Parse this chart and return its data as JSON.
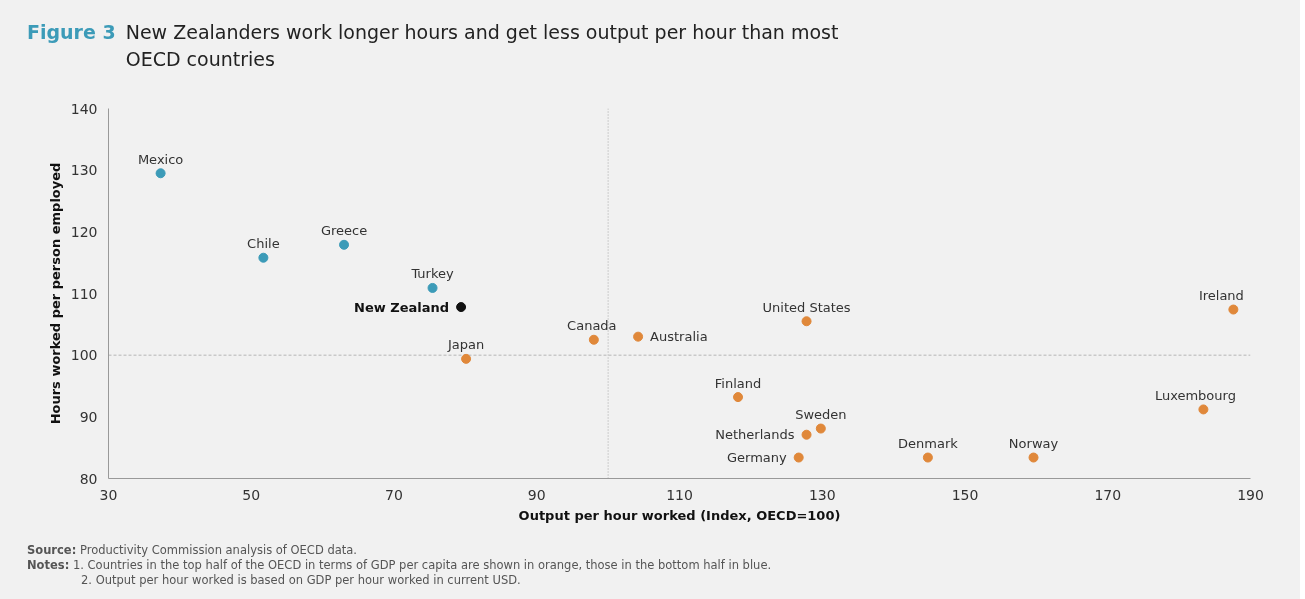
{
  "chart_data": {
    "type": "scatter",
    "title": "New Zealanders work longer hours and get less output per hour than most OECD countries",
    "xlabel": "Output per hour worked (Index, OECD=100)",
    "ylabel": "Hours worked per person employed",
    "xlim": [
      30,
      190
    ],
    "xticks": [
      30,
      50,
      70,
      90,
      110,
      130,
      150,
      170,
      190
    ],
    "ylim": [
      80,
      140
    ],
    "yticks": [
      80,
      90,
      100,
      110,
      120,
      130,
      140
    ],
    "grid": false,
    "marker": "circle",
    "series": [
      {
        "color": "#3c9bb8",
        "x": [
          37.3,
          51.7,
          63.0,
          75.4
        ],
        "values": [
          129.5,
          115.8,
          117.9,
          110.9
        ]
      },
      {
        "color": "#111111",
        "x": [
          79.4
        ],
        "values": [
          107.8
        ]
      },
      {
        "color": "#e0883a",
        "x": [
          80.1,
          98.0,
          104.2,
          127.8,
          187.6,
          118.2,
          183.4,
          129.8,
          127.8,
          126.7,
          144.8,
          159.6
        ],
        "values": [
          99.4,
          102.5,
          103.0,
          105.5,
          107.4,
          93.2,
          91.2,
          88.1,
          87.1,
          83.4,
          83.4,
          83.4
        ]
      }
    ],
    "ref_lines": [
      {
        "axis": "x",
        "value": 100,
        "color": "#aaaaaa",
        "line_style": "dotted"
      },
      {
        "axis": "y",
        "value": 100,
        "color": "#b5b5b5",
        "line_style": "dashed"
      }
    ],
    "annotations": [
      "Figure 3",
      {
        "text": "Mexico",
        "x": 37.3,
        "y": 129.5
      },
      {
        "text": "Chile",
        "x": 51.7,
        "y": 115.8
      },
      {
        "text": "Greece",
        "x": 63.0,
        "y": 117.9
      },
      {
        "text": "Turkey",
        "x": 75.4,
        "y": 110.9
      },
      {
        "text": "New Zealand",
        "x": 79.4,
        "y": 107.8
      },
      {
        "text": "Japan",
        "x": 80.1,
        "y": 99.4
      },
      {
        "text": "Canada",
        "x": 98.0,
        "y": 102.5
      },
      {
        "text": "Australia",
        "x": 104.2,
        "y": 103.0
      },
      {
        "text": "United States",
        "x": 127.8,
        "y": 105.5
      },
      {
        "text": "Ireland",
        "x": 187.6,
        "y": 107.4
      },
      {
        "text": "Finland",
        "x": 118.2,
        "y": 93.2
      },
      {
        "text": "Luxembourg",
        "x": 183.4,
        "y": 91.2
      },
      {
        "text": "Sweden",
        "x": 129.8,
        "y": 88.1
      },
      {
        "text": "Netherlands",
        "x": 127.8,
        "y": 87.1
      },
      {
        "text": "Germany",
        "x": 126.7,
        "y": 83.4
      },
      {
        "text": "Denmark",
        "x": 144.8,
        "y": 83.4
      },
      {
        "text": "Norway",
        "x": 159.6,
        "y": 83.4
      },
      "Source: Productivity Commission analysis of OECD data.",
      "Notes: 1. Countries in the top half of the OECD in terms of GDP per capita are shown in orange, those in the bottom half in blue.",
      "2. Output per hour worked is based on GDP per hour worked in current USD."
    ]
  }
}
